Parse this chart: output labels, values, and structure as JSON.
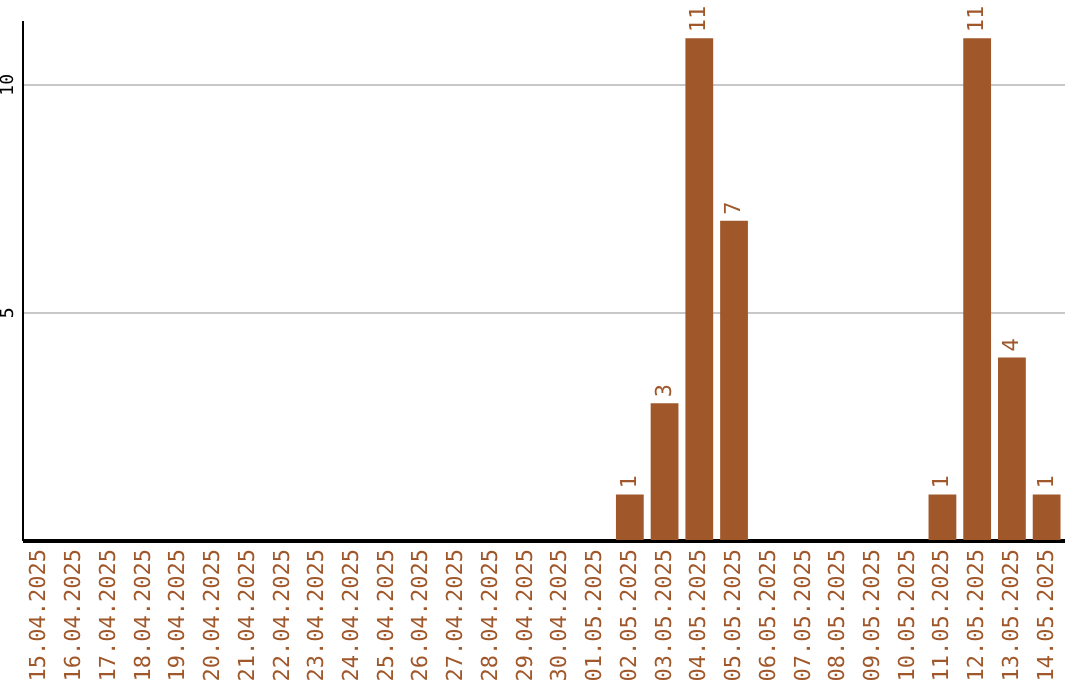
{
  "chart_data": {
    "type": "bar",
    "categories": [
      "15.04.2025",
      "16.04.2025",
      "17.04.2025",
      "18.04.2025",
      "19.04.2025",
      "20.04.2025",
      "21.04.2025",
      "22.04.2025",
      "23.04.2025",
      "24.04.2025",
      "25.04.2025",
      "26.04.2025",
      "27.04.2025",
      "28.04.2025",
      "29.04.2025",
      "30.04.2025",
      "01.05.2025",
      "02.05.2025",
      "03.05.2025",
      "04.05.2025",
      "05.05.2025",
      "06.05.2025",
      "07.05.2025",
      "08.05.2025",
      "09.05.2025",
      "10.05.2025",
      "11.05.2025",
      "12.05.2025",
      "13.05.2025",
      "14.05.2025"
    ],
    "values": [
      0,
      0,
      0,
      0,
      0,
      0,
      0,
      0,
      0,
      0,
      0,
      0,
      0,
      0,
      0,
      0,
      0,
      1,
      3,
      11,
      7,
      0,
      0,
      0,
      0,
      0,
      1,
      11,
      4,
      1
    ],
    "value_labels": [
      null,
      null,
      null,
      null,
      null,
      null,
      null,
      null,
      null,
      null,
      null,
      null,
      null,
      null,
      null,
      null,
      null,
      "1",
      "3",
      "11",
      "7",
      null,
      null,
      null,
      null,
      null,
      "1",
      "11",
      "4",
      "1"
    ],
    "color": "#a0572a",
    "ylim": [
      0,
      11.4
    ],
    "yticks": [
      5,
      10
    ],
    "grid": "y"
  }
}
